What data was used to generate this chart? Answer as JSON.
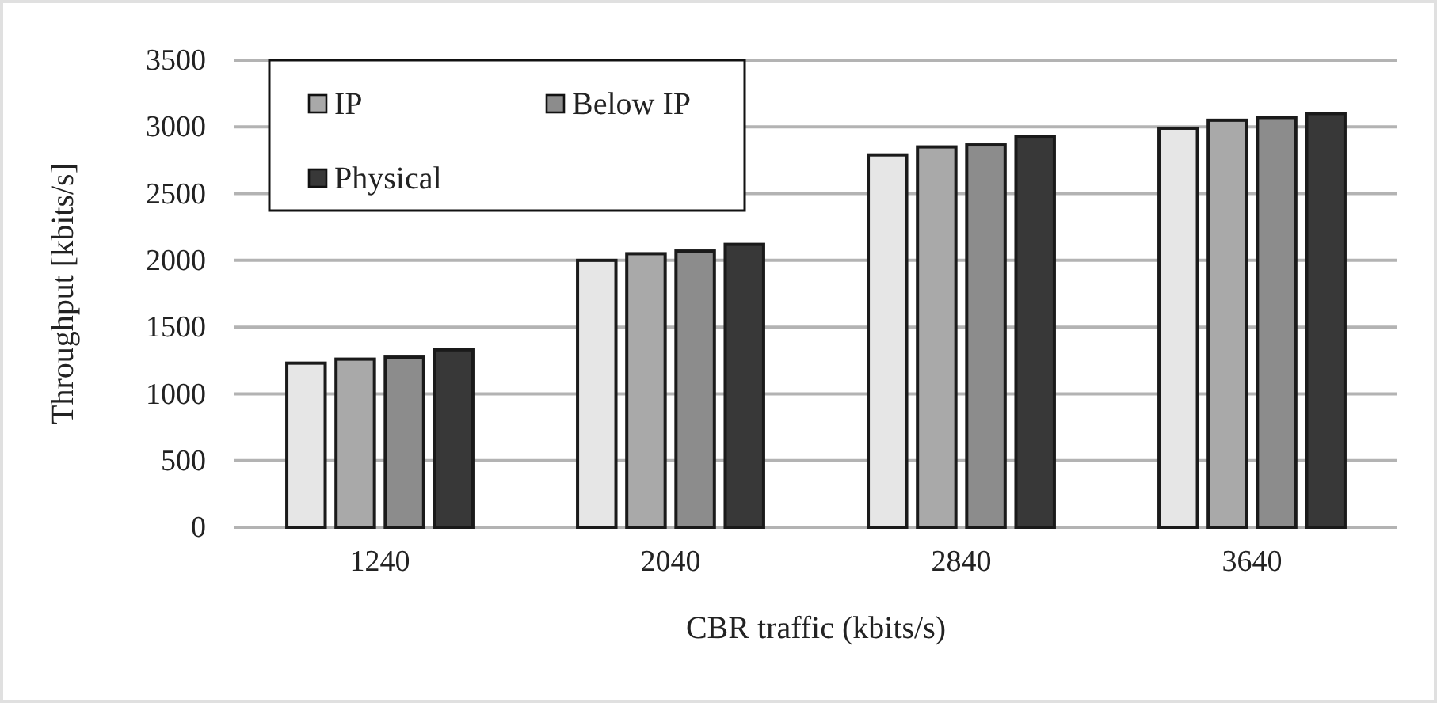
{
  "chart_data": {
    "type": "bar",
    "xlabel": "CBR traffic (kbits/s)",
    "ylabel": "Throughput [kbits/s]",
    "categories": [
      "1240",
      "2040",
      "2840",
      "3640"
    ],
    "series": [
      {
        "color": "#e6e6e6",
        "values": [
          1230,
          2000,
          2790,
          2990
        ]
      },
      {
        "name": "IP",
        "color": "#a9a9a9",
        "values": [
          1260,
          2050,
          2850,
          3050
        ]
      },
      {
        "name": "Below IP",
        "color": "#8c8c8c",
        "values": [
          1275,
          2070,
          2865,
          3070
        ]
      },
      {
        "name": "Physical",
        "color": "#383838",
        "values": [
          1330,
          2120,
          2930,
          3100
        ]
      }
    ],
    "ylim": [
      0,
      3500
    ],
    "yticks": [
      0,
      500,
      1000,
      1500,
      2000,
      2500,
      3000,
      3500
    ],
    "grid": "y",
    "legend": "top left"
  }
}
